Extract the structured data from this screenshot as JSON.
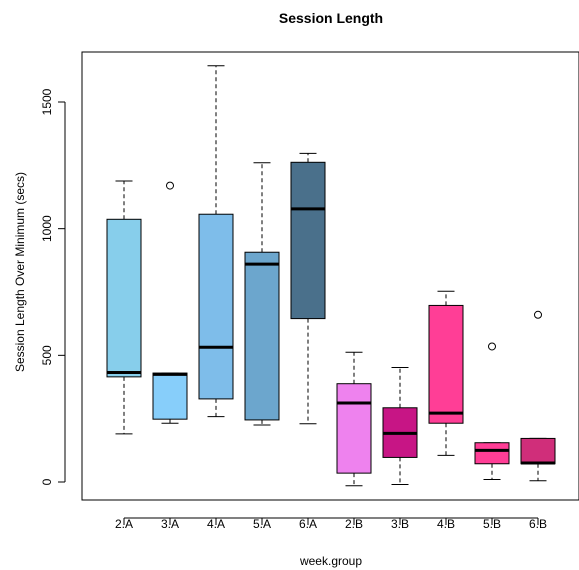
{
  "chart_data": {
    "type": "boxplot",
    "title": "Session Length",
    "xlabel": "week.group",
    "ylabel": "Session Length Over Minimum (secs)",
    "ylim": [
      -60,
      1680
    ],
    "yticks": [
      0,
      500,
      1000,
      1500
    ],
    "grid": false,
    "legend": "none",
    "categories": [
      "2.A",
      "3.A",
      "4.A",
      "5.A",
      "6.A",
      "2.B",
      "3.B",
      "4.B",
      "5.B",
      "6.B"
    ],
    "boxes": [
      {
        "label": "2.A",
        "color": "#87CEEB",
        "whisker_low": 190,
        "q1": 415,
        "median": 432,
        "q3": 1037,
        "whisker_high": 1188,
        "outliers": []
      },
      {
        "label": "3.A",
        "color": "#87CEFA",
        "whisker_low": 232,
        "q1": 248,
        "median": 425,
        "q3": 430,
        "whisker_high": 430,
        "outliers": [
          1170
        ]
      },
      {
        "label": "4.A",
        "color": "#7EBDEA",
        "whisker_low": 258,
        "q1": 328,
        "median": 532,
        "q3": 1057,
        "whisker_high": 1643,
        "outliers": []
      },
      {
        "label": "5.A",
        "color": "#6CA6CD",
        "whisker_low": 225,
        "q1": 245,
        "median": 860,
        "q3": 907,
        "whisker_high": 1260,
        "outliers": []
      },
      {
        "label": "6.A",
        "color": "#4A708B",
        "whisker_low": 230,
        "q1": 645,
        "median": 1078,
        "q3": 1262,
        "whisker_high": 1297,
        "outliers": []
      },
      {
        "label": "2.B",
        "color": "#EE82EE",
        "whisker_low": -15,
        "q1": 35,
        "median": 312,
        "q3": 388,
        "whisker_high": 512,
        "outliers": []
      },
      {
        "label": "3.B",
        "color": "#C71585",
        "whisker_low": -10,
        "q1": 97,
        "median": 192,
        "q3": 293,
        "whisker_high": 452,
        "outliers": []
      },
      {
        "label": "4.B",
        "color": "#FF3E96",
        "whisker_low": 105,
        "q1": 232,
        "median": 272,
        "q3": 697,
        "whisker_high": 753,
        "outliers": []
      },
      {
        "label": "5.B",
        "color": "#FF3E96",
        "whisker_low": 10,
        "q1": 72,
        "median": 125,
        "q3": 155,
        "whisker_high": 155,
        "outliers": [
          535
        ]
      },
      {
        "label": "6.B",
        "color": "#D02E7A",
        "whisker_low": 5,
        "q1": 72,
        "median": 75,
        "q3": 172,
        "whisker_high": 172,
        "outliers": [
          660
        ]
      }
    ]
  }
}
